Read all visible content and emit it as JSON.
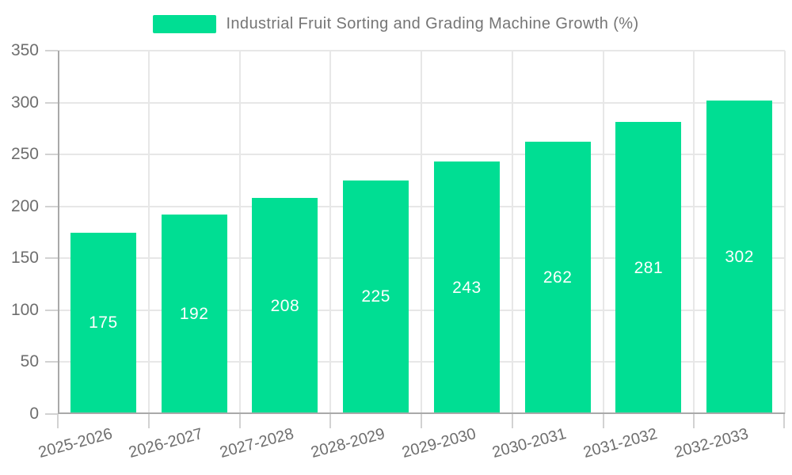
{
  "chart_data": {
    "type": "bar",
    "title": "Industrial Fruit Sorting and Grading Machine Growth (%)",
    "legend_position": "top",
    "categories": [
      "2025-2026",
      "2026-2027",
      "2027-2028",
      "2028-2029",
      "2029-2030",
      "2030-2031",
      "2031-2032",
      "2032-2033"
    ],
    "values": [
      175,
      192,
      208,
      225,
      243,
      262,
      281,
      302
    ],
    "show_data_labels": true,
    "xlabel": "",
    "ylabel": "",
    "ylim": [
      0,
      350
    ],
    "yticks": [
      0,
      50,
      100,
      150,
      200,
      250,
      300,
      350
    ],
    "grid": "horizontal-and-vertical",
    "x_label_rotation_deg": -15
  },
  "colors": {
    "bar": "#00de93",
    "bar_label": "#ffffff",
    "title_text": "#757575",
    "axis_label": "#6e6e6e",
    "axis_line": "#a9a9a9",
    "tick": "#d2d2d2",
    "gridline": "#e7e7e7",
    "background": "#ffffff"
  }
}
